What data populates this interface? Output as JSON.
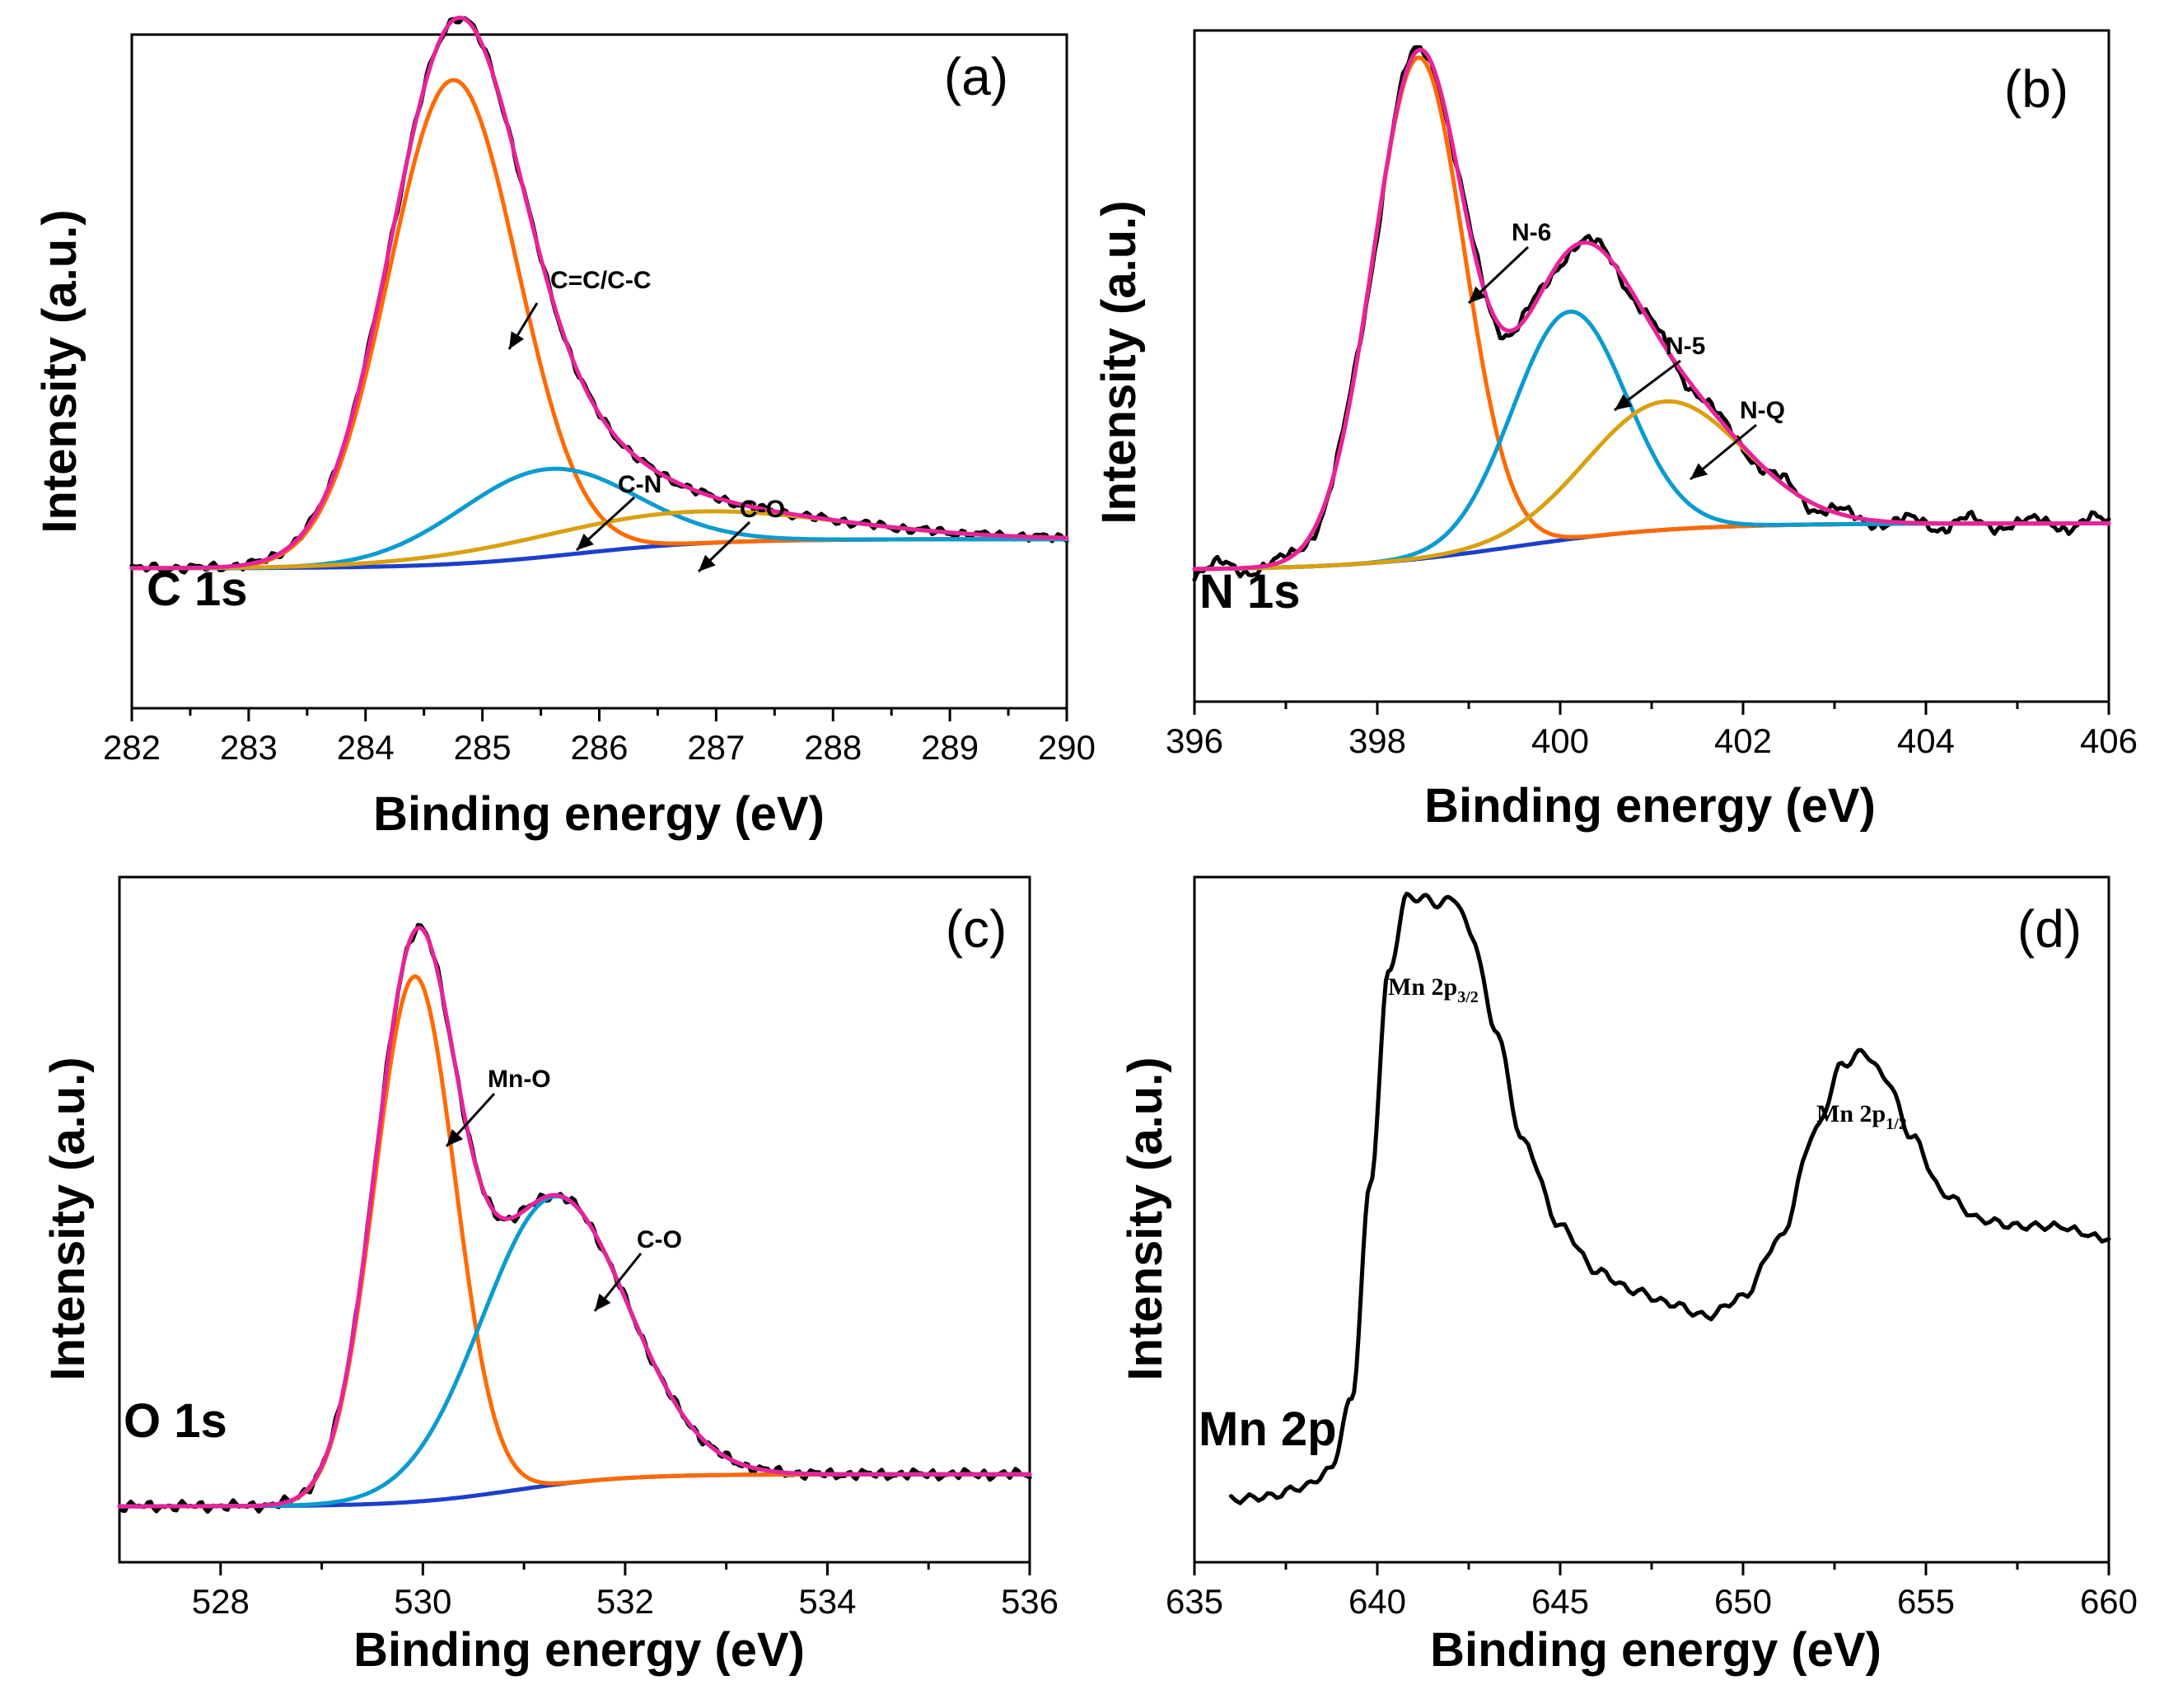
{
  "colors": {
    "raw": "#000000",
    "envelope": "#e8239a",
    "peak1": "#ff6a00",
    "peak2": "#0a9bd0",
    "peak3": "#d9a010",
    "background": "#1c3fcc"
  },
  "chart_data": [
    {
      "type": "line",
      "panel": "(a)",
      "element": "C 1s",
      "xlabel": "Binding energy (eV)",
      "ylabel": "Intensity (a.u.)",
      "xlim": [
        282,
        290
      ],
      "ylim": [
        0,
        1.1
      ],
      "xticks": [
        "282",
        "283",
        "284",
        "285",
        "286",
        "287",
        "288",
        "289",
        "290"
      ],
      "xtick_values": [
        282,
        283,
        284,
        285,
        286,
        287,
        288,
        289,
        290
      ],
      "background": {
        "start": 0.12,
        "end": 0.17,
        "center": 285.8,
        "width": 0.6
      },
      "components": [
        {
          "name": "C=C/C-C",
          "center": 284.75,
          "height": 0.83,
          "sigma": 0.55,
          "color_key": "peak1"
        },
        {
          "name": "C-N",
          "center": 285.55,
          "height": 0.15,
          "sigma": 0.75,
          "color_key": "peak2"
        },
        {
          "name": "C-O",
          "center": 286.7,
          "height": 0.055,
          "sigma": 1.3,
          "color_key": "peak3"
        }
      ],
      "annotations": [
        {
          "text": "C=C/C-C",
          "target": [
            285.6,
            0.72
          ]
        },
        {
          "text": "C-N",
          "target": [
            286.4,
            0.27
          ]
        },
        {
          "text": "C-O",
          "target": [
            287.0,
            0.24
          ]
        }
      ]
    },
    {
      "type": "line",
      "panel": "(b)",
      "element": "N 1s",
      "xlabel": "Binding energy (eV)",
      "ylabel": "Intensity (a.u.)",
      "xlim": [
        396,
        406
      ],
      "ylim": [
        0,
        1.1
      ],
      "xticks": [
        "396",
        "398",
        "400",
        "402",
        "404",
        "406"
      ],
      "xtick_values": [
        396,
        398,
        400,
        402,
        404,
        406
      ],
      "background": {
        "start": 0.11,
        "end": 0.19,
        "center": 399.5,
        "width": 0.9
      },
      "components": [
        {
          "name": "N-6",
          "center": 398.45,
          "height": 0.86,
          "sigma": 0.5,
          "color_key": "peak1"
        },
        {
          "name": "N-5",
          "center": 400.1,
          "height": 0.39,
          "sigma": 0.62,
          "color_key": "peak2"
        },
        {
          "name": "N-Q",
          "center": 401.15,
          "height": 0.22,
          "sigma": 0.85,
          "color_key": "peak3"
        }
      ],
      "annotations": [
        {
          "text": "N-6",
          "target": [
            398.95,
            0.63
          ]
        },
        {
          "text": "N-5",
          "target": [
            400.4,
            0.51
          ]
        },
        {
          "text": "N-Q",
          "target": [
            401.3,
            0.35
          ]
        }
      ]
    },
    {
      "type": "line",
      "panel": "(c)",
      "element": "O 1s",
      "xlabel": "Binding energy (eV)",
      "ylabel": "Intensity (a.u.)",
      "xlim": [
        527,
        536
      ],
      "ylim": [
        0,
        1.1
      ],
      "xticks": [
        "528",
        "530",
        "532",
        "534",
        "536"
      ],
      "xtick_values": [
        528,
        530,
        532,
        534,
        536
      ],
      "background": {
        "start": 0.05,
        "end": 0.1,
        "center": 530.9,
        "width": 0.55
      },
      "components": [
        {
          "name": "Mn-O",
          "center": 529.92,
          "height": 0.82,
          "sigma": 0.4,
          "color_key": "peak1"
        },
        {
          "name": "C-O",
          "center": 531.3,
          "height": 0.45,
          "sigma": 0.72,
          "color_key": "peak2"
        }
      ],
      "annotations": [
        {
          "text": "Mn-O",
          "target": [
            530.25,
            0.72
          ]
        },
        {
          "text": "C-O",
          "target": [
            531.75,
            0.44
          ]
        }
      ]
    },
    {
      "type": "line",
      "panel": "(d)",
      "element": "Mn 2p",
      "xlabel": "Binding energy (eV)",
      "ylabel": "Intensity (a.u.)",
      "xlim": [
        635,
        660
      ],
      "ylim": [
        0,
        1.1
      ],
      "xticks": [
        "635",
        "640",
        "645",
        "650",
        "655",
        "660"
      ],
      "xtick_values": [
        635,
        640,
        645,
        650,
        655,
        660
      ],
      "series": [
        {
          "name": "Mn 2p",
          "x": [
            636,
            637,
            638,
            638.7,
            639.3,
            639.8,
            640.3,
            640.8,
            641.2,
            641.7,
            642.1,
            642.6,
            643.2,
            644,
            645,
            646,
            647,
            648,
            649,
            650,
            651,
            652,
            652.7,
            653.3,
            653.9,
            654.6,
            655.5,
            656.5,
            657.5,
            658.5,
            660
          ],
          "y": [
            0.065,
            0.07,
            0.085,
            0.11,
            0.22,
            0.55,
            0.88,
            1.0,
            1.0,
            0.99,
            1.0,
            0.94,
            0.8,
            0.62,
            0.49,
            0.42,
            0.39,
            0.37,
            0.35,
            0.38,
            0.47,
            0.64,
            0.74,
            0.76,
            0.72,
            0.63,
            0.54,
            0.5,
            0.49,
            0.49,
            0.47
          ]
        }
      ],
      "annotations": [
        {
          "text": "Mn 2p",
          "sub": "3/2",
          "at": [
            641.4,
            1.02
          ]
        },
        {
          "text": "Mn 2p",
          "sub": "1/2",
          "at": [
            653.4,
            0.78
          ]
        }
      ]
    }
  ]
}
